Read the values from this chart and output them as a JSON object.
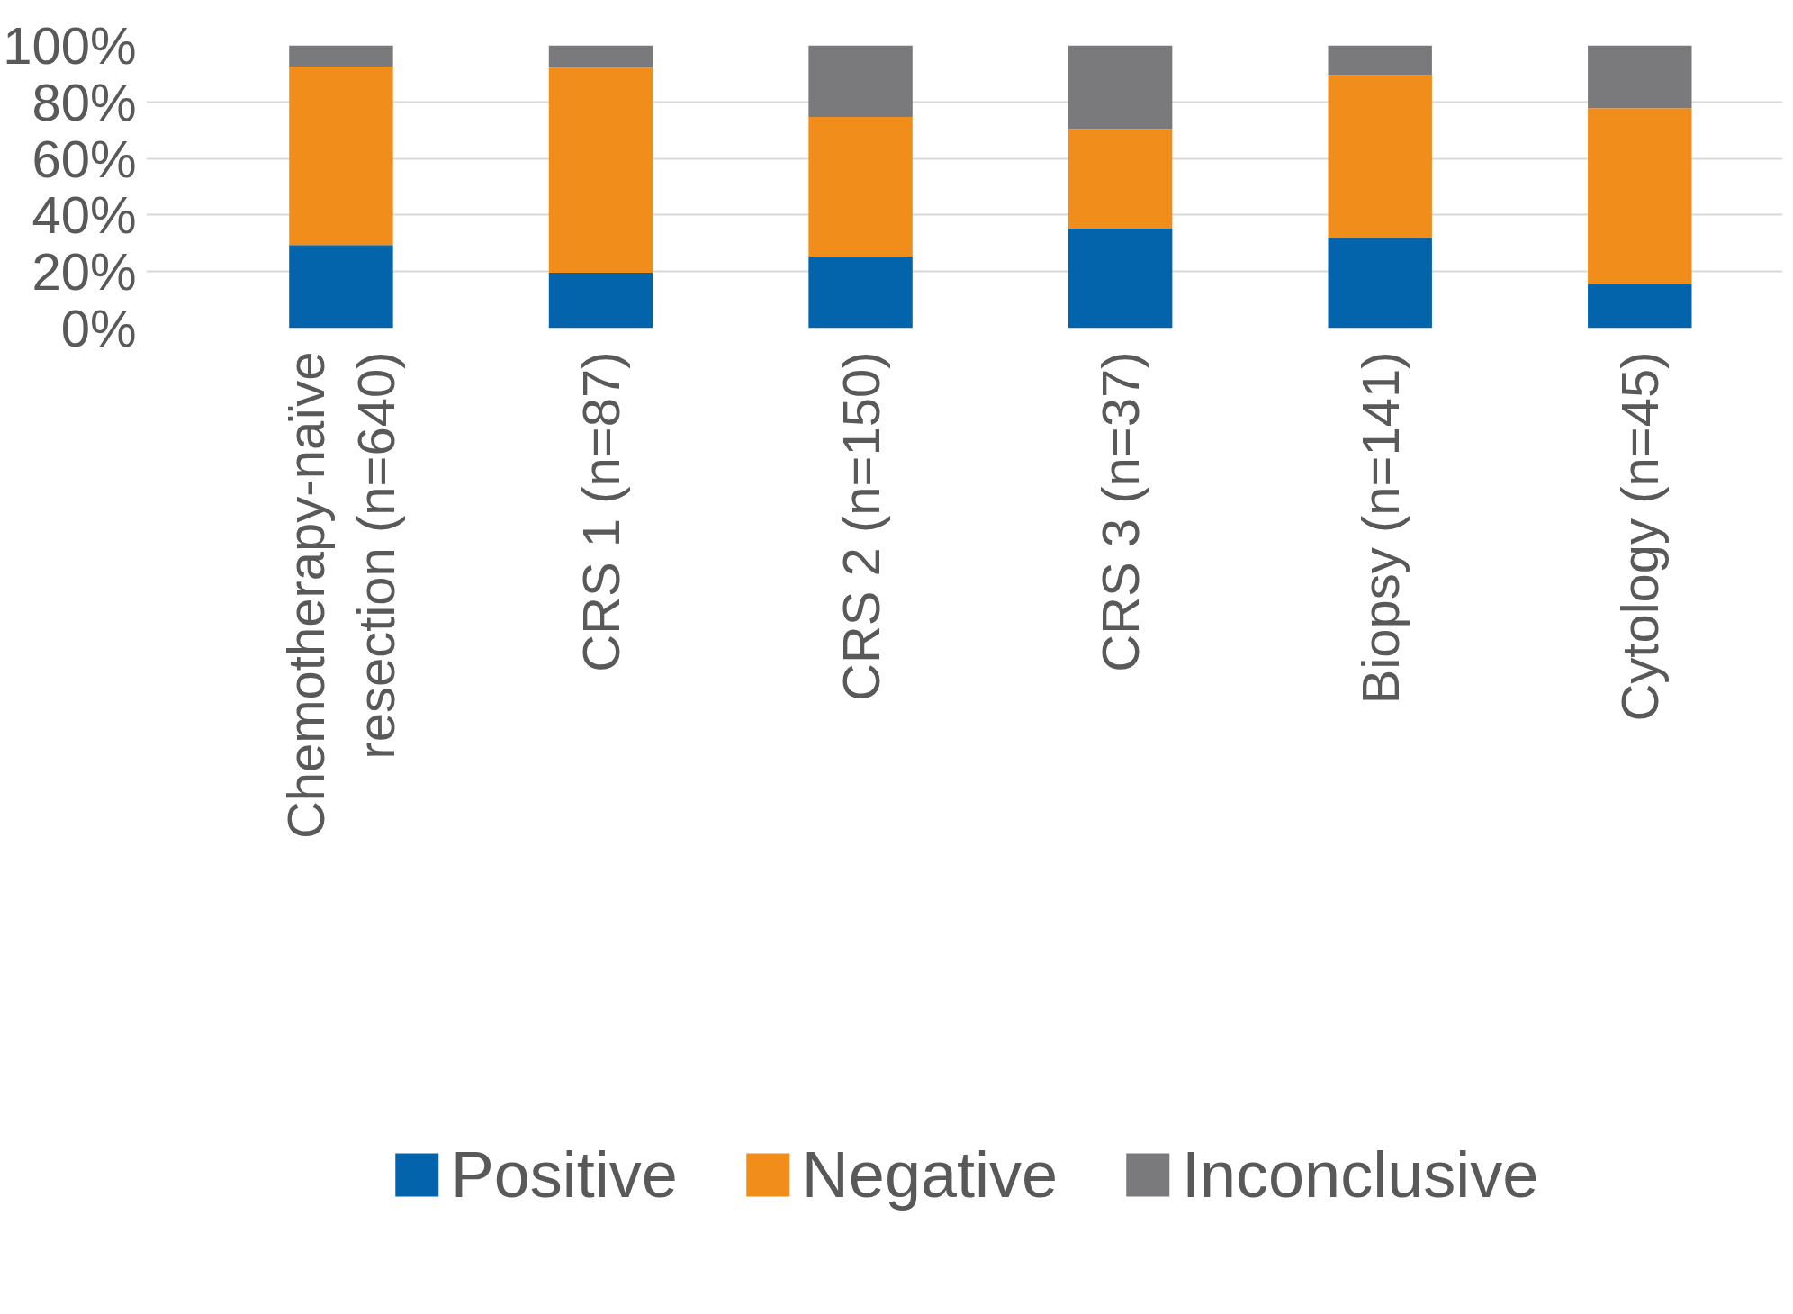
{
  "chart_data": {
    "type": "bar",
    "stacked": true,
    "categories": [
      "Chemotherapy-naïve\nresection (n=640)",
      "CRS 1 (n=87)",
      "CRS 2 (n=150)",
      "CRS 3 (n=37)",
      "Biopsy (n=141)",
      "Cytology (n=45)"
    ],
    "series": [
      {
        "name": "Positive",
        "color": "#0464ab",
        "values": [
          29.4,
          19.6,
          25.3,
          35.2,
          31.9,
          15.8
        ]
      },
      {
        "name": "Negative",
        "color": "#f18e1b",
        "values": [
          63.1,
          72.5,
          49.4,
          35.3,
          57.6,
          62.0
        ]
      },
      {
        "name": "Inconclusive",
        "color": "#7a7a7c",
        "values": [
          7.5,
          7.9,
          25.3,
          29.5,
          10.5,
          22.2
        ]
      }
    ],
    "ylim": [
      0,
      100
    ],
    "yticks": [
      {
        "value": 0,
        "label": "0%"
      },
      {
        "value": 20,
        "label": "20%"
      },
      {
        "value": 40,
        "label": "40%"
      },
      {
        "value": 60,
        "label": "60%"
      },
      {
        "value": 80,
        "label": "80%"
      },
      {
        "value": 100,
        "label": "100%"
      }
    ],
    "grid": "y",
    "legend": "bottom"
  }
}
